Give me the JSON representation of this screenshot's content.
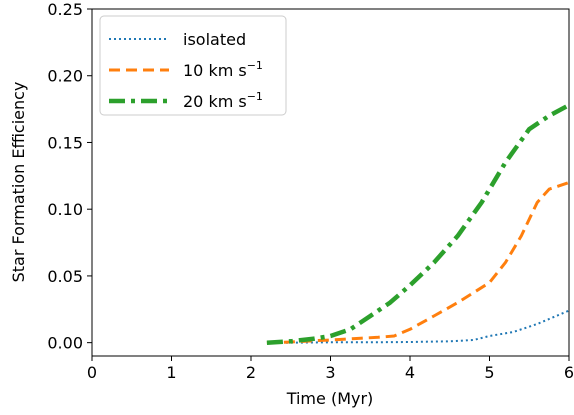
{
  "chart_data": {
    "type": "line",
    "title": "",
    "xlabel": "Time (Myr)",
    "ylabel": "Star Formation Efficiency",
    "xlim": [
      0,
      6
    ],
    "ylim": [
      -0.01,
      0.25
    ],
    "xticks": [
      "0",
      "1",
      "2",
      "3",
      "4",
      "5",
      "6"
    ],
    "yticks": [
      "0.00",
      "0.05",
      "0.10",
      "0.15",
      "0.20",
      "0.25"
    ],
    "grid": false,
    "legend_location": "upper left",
    "series": [
      {
        "name": "isolated",
        "legend_main": "isolated",
        "legend_sup": "",
        "color": "#1f77b4",
        "linestyle": "dotted",
        "x": [
          2.25,
          2.5,
          3.0,
          3.5,
          4.0,
          4.5,
          4.8,
          5.0,
          5.3,
          5.6,
          6.0
        ],
        "y": [
          0.0,
          0.0,
          0.0003,
          0.0003,
          0.0005,
          0.001,
          0.002,
          0.005,
          0.008,
          0.014,
          0.024
        ]
      },
      {
        "name": "10 km s^-1",
        "legend_main": "10 km s",
        "legend_sup": "−1",
        "color": "#ff7f0e",
        "linestyle": "dashed",
        "x": [
          2.2,
          2.5,
          2.8,
          3.0,
          3.3,
          3.6,
          3.8,
          4.0,
          4.3,
          4.6,
          5.0,
          5.2,
          5.4,
          5.6,
          5.75,
          6.0
        ],
        "y": [
          0.0,
          0.0005,
          0.0015,
          0.002,
          0.003,
          0.004,
          0.005,
          0.01,
          0.02,
          0.03,
          0.045,
          0.06,
          0.08,
          0.105,
          0.115,
          0.12
        ]
      },
      {
        "name": "20 km s^-1",
        "legend_main": "20 km s",
        "legend_sup": "−1",
        "color": "#2ca02c",
        "linestyle": "dashdot",
        "x": [
          2.2,
          2.5,
          2.8,
          3.0,
          3.25,
          3.5,
          3.75,
          4.0,
          4.3,
          4.6,
          4.9,
          5.2,
          5.5,
          5.75,
          6.0
        ],
        "y": [
          0.0,
          0.001,
          0.003,
          0.005,
          0.01,
          0.02,
          0.03,
          0.043,
          0.06,
          0.08,
          0.105,
          0.135,
          0.16,
          0.17,
          0.178
        ]
      }
    ]
  }
}
